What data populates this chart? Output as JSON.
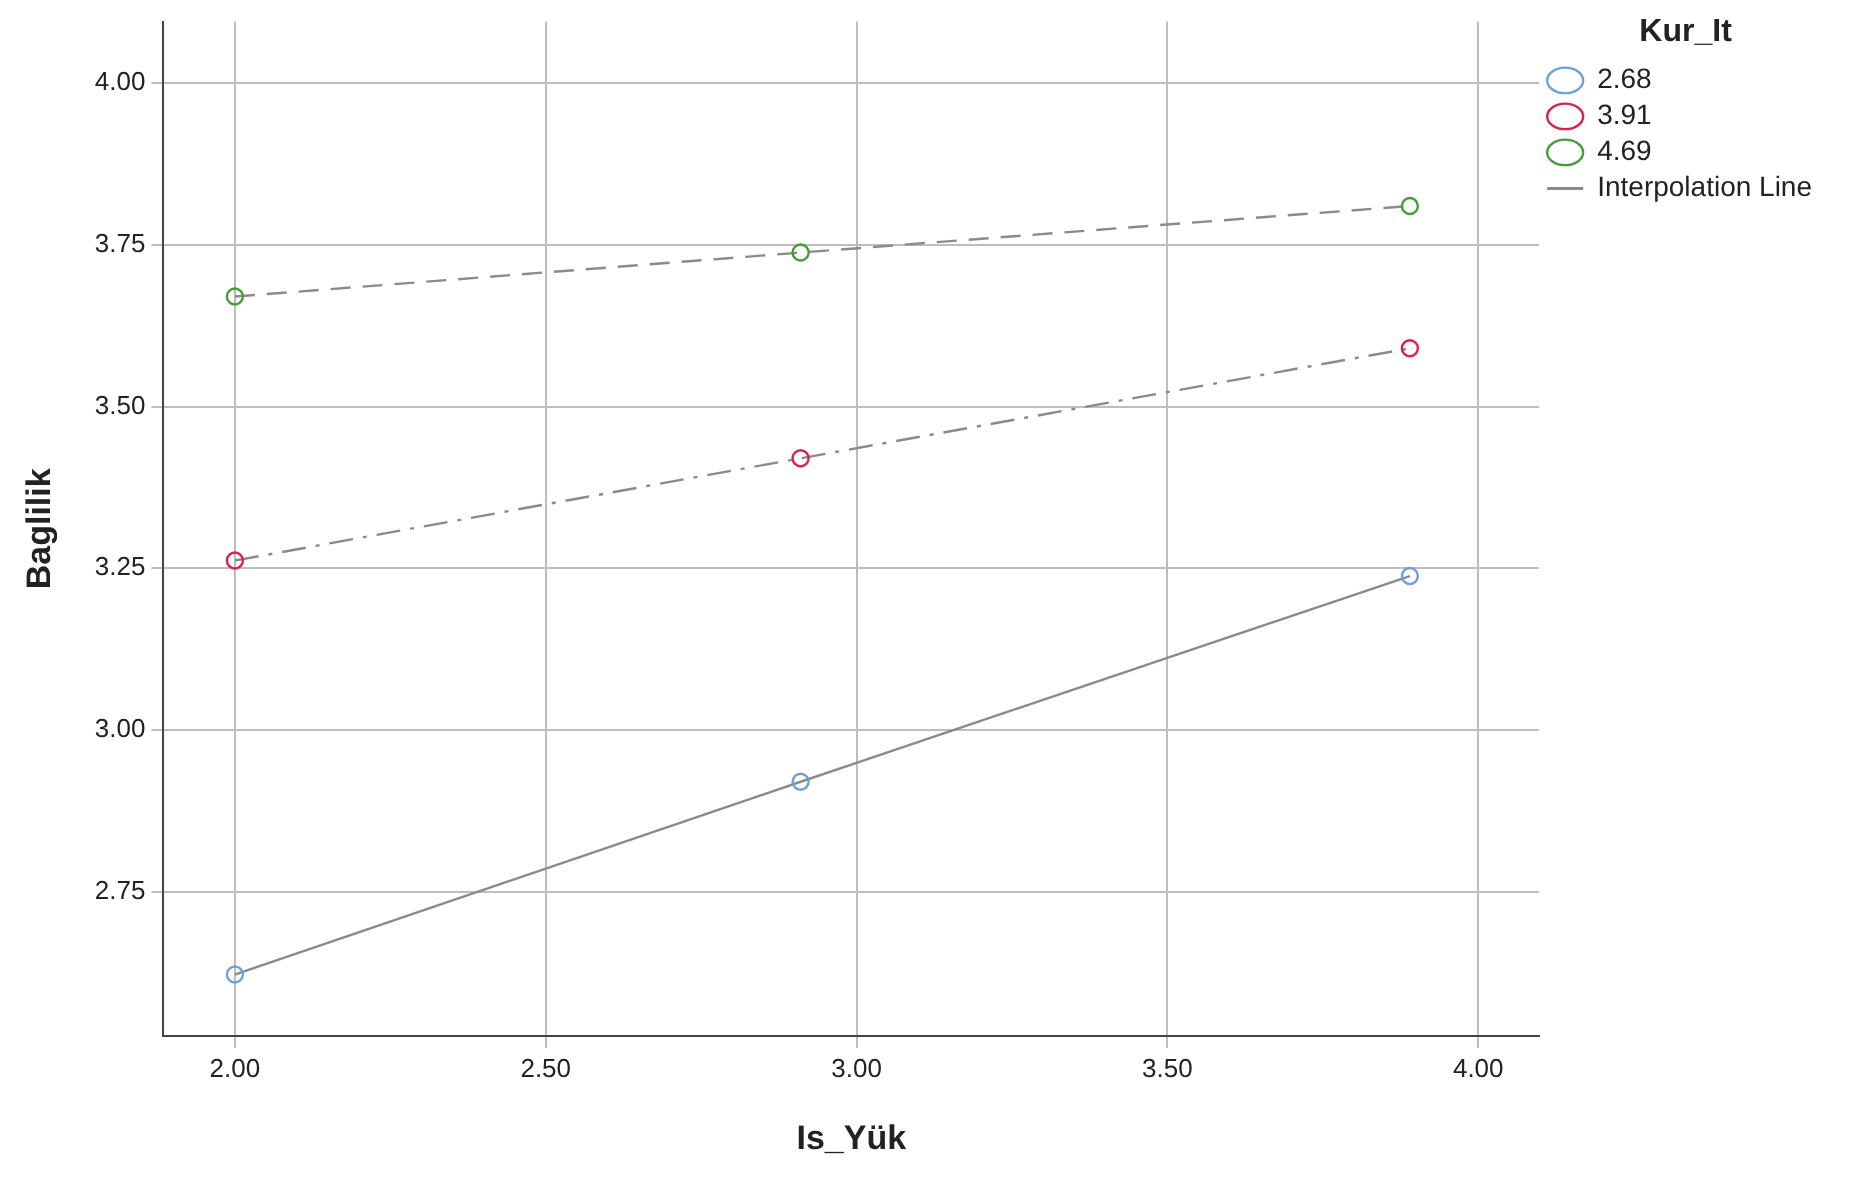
{
  "chart_data": {
    "type": "line",
    "xlabel": "Is_Yük",
    "ylabel": "Baglilik",
    "legend_title": "Kur_It",
    "legend": "top right",
    "grid": true,
    "marker": "circle",
    "xlim": [
      1.885,
      4.098
    ],
    "ylim": [
      2.527,
      4.095
    ],
    "xticks": [
      {
        "value": 2,
        "label": "2.00"
      },
      {
        "value": 2.5,
        "label": "2.50"
      },
      {
        "value": 3,
        "label": "3.00"
      },
      {
        "value": 3.5,
        "label": "3.50"
      },
      {
        "value": 4,
        "label": "4.00"
      }
    ],
    "yticks": [
      {
        "value": 2.75,
        "label": "2.75"
      },
      {
        "value": 3,
        "label": "3.00"
      },
      {
        "value": 3.25,
        "label": "3.25"
      },
      {
        "value": 3.5,
        "label": "3.50"
      },
      {
        "value": 3.75,
        "label": "3.75"
      },
      {
        "value": 4,
        "label": "4.00"
      }
    ],
    "x": [
      2.0,
      2.91,
      3.89
    ],
    "annotations": [
      "Interpolation Line"
    ],
    "series": [
      {
        "name": "2.68",
        "color": "#6fa0dc",
        "line_style": "solid",
        "values": [
          2.622,
          2.92,
          3.238
        ]
      },
      {
        "name": "3.91",
        "color": "#d6234a",
        "line_style": "dashdot",
        "values": [
          3.262,
          3.42,
          3.59
        ]
      },
      {
        "name": "4.69",
        "color": "#4a9a3c",
        "line_style": "dashed",
        "values": [
          3.67,
          3.738,
          3.81
        ]
      }
    ]
  }
}
